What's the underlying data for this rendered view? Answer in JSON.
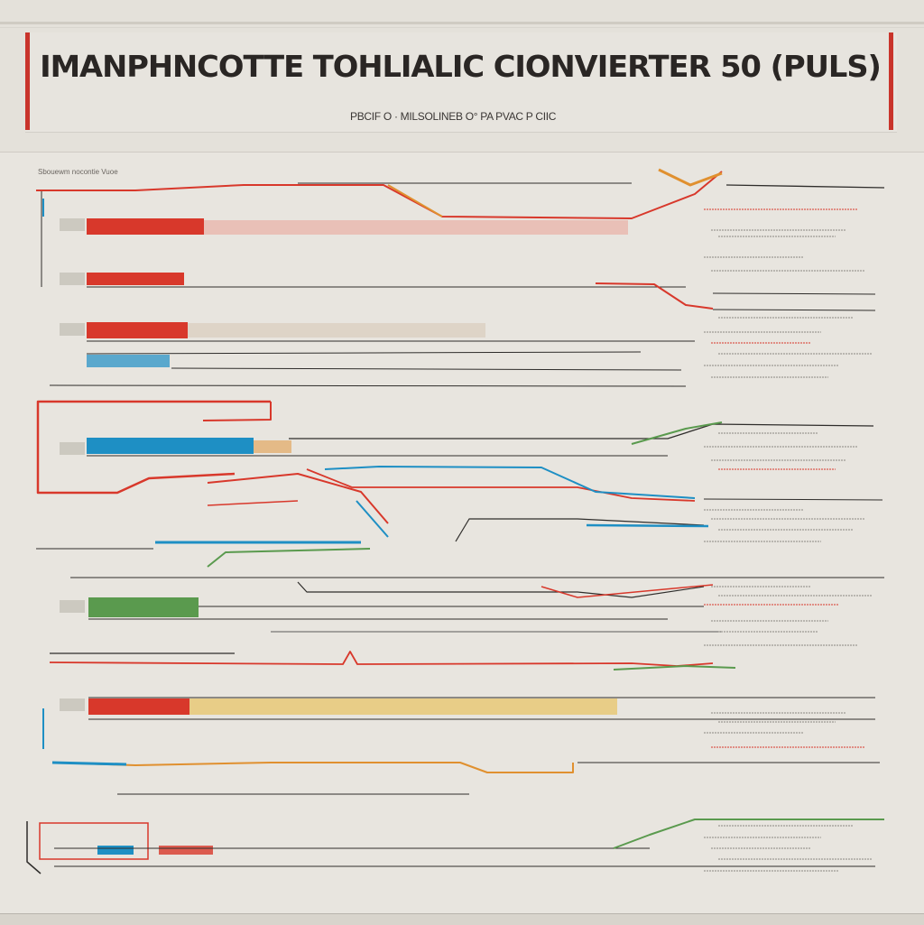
{
  "header": {
    "title": "IMANPHNCOTTE TOHLIALIC CIONVIERTER 50 (PULS)",
    "subtitle": "PBCIF O · MILSOLINEB O° PA PVAC  P CIIC",
    "accent_color": "#c9342b"
  },
  "panel": {
    "label": "Sbouewm nocontie Vuoe",
    "colors": {
      "red": "#d8382b",
      "blue": "#1e8fc4",
      "green": "#5a9a4e",
      "orange": "#e0902f",
      "yellow": "#e8c46a",
      "dark": "#2f2d2b",
      "pink": "#e9b6ad",
      "beige": "#ddd2c4"
    }
  }
}
